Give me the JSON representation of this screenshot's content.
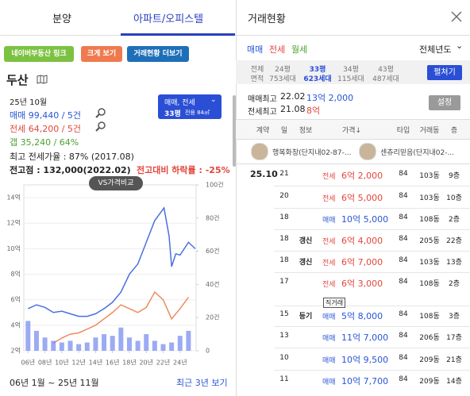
{
  "tabs": [
    "분양",
    "아파트/오피스텔"
  ],
  "buttons": [
    "네이버부동산 링크",
    "크게 보기",
    "거래현황 더보기"
  ],
  "complex": {
    "name": "두산",
    "month": "25년 10월",
    "sale": "매매 99,440 / 5건",
    "jeonse": "전세 64,200 / 5건",
    "gap": "갭 35,240 / 64%",
    "max_ratio": "최고 전세가율 : 87% (2017.08)",
    "peak": "전고점 : 132,000(2022.02)",
    "drop": "전고대비 하락률 : -25%"
  },
  "selector": {
    "type": "매매, 전세",
    "size": "33평",
    "area": "전용 84㎡"
  },
  "tooltip": "VS가격비교",
  "chart_data": {
    "type": "line",
    "xlim": [
      2005.5,
      2025.9
    ],
    "xticks": [
      {
        "value": 2006,
        "label": "06년"
      },
      {
        "value": 2008,
        "label": "08년"
      },
      {
        "value": 2010,
        "label": "10년"
      },
      {
        "value": 2012,
        "label": "12년"
      },
      {
        "value": 2014,
        "label": "14년"
      },
      {
        "value": 2016,
        "label": "16년"
      },
      {
        "value": 2018,
        "label": "18년"
      },
      {
        "value": 2020,
        "label": "20년"
      },
      {
        "value": 2022,
        "label": "22년"
      },
      {
        "value": 2024,
        "label": "24년"
      }
    ],
    "ylim": [
      2,
      15
    ],
    "yticks": [
      {
        "value": 2,
        "label": "2억"
      },
      {
        "value": 4,
        "label": "4억"
      },
      {
        "value": 6,
        "label": "6억"
      },
      {
        "value": 8,
        "label": "8억"
      },
      {
        "value": 10,
        "label": "10억"
      },
      {
        "value": 12,
        "label": "12억"
      },
      {
        "value": 14,
        "label": "14억"
      }
    ],
    "y2lim": [
      0,
      100
    ],
    "y2ticks": [
      0,
      {
        "value": 20,
        "label": "20건"
      },
      {
        "value": 40,
        "label": "40건"
      },
      {
        "value": 60,
        "label": "60건"
      },
      {
        "value": 80,
        "label": "80건"
      },
      {
        "value": 100,
        "label": "100건"
      }
    ],
    "series": [
      {
        "color": "#4a6fe0",
        "x": [
          2006,
          2007,
          2008,
          2009,
          2010,
          2011,
          2012,
          2013,
          2014,
          2015,
          2016,
          2017,
          2018,
          2019,
          2020,
          2021,
          2022.1,
          2022.7,
          2023,
          2023.5,
          2024,
          2025,
          2025.8
        ],
        "values": [
          5.3,
          5.6,
          5.4,
          5.0,
          5.1,
          4.9,
          4.7,
          4.7,
          4.9,
          5.3,
          5.8,
          6.6,
          8.0,
          8.8,
          10.5,
          12.2,
          13.2,
          11.0,
          8.6,
          9.6,
          9.5,
          10.5,
          10.0
        ]
      },
      {
        "color": "#f08a5d",
        "x": [
          2009,
          2010,
          2011,
          2012,
          2013,
          2014,
          2015,
          2016,
          2017,
          2018,
          2019,
          2020,
          2021,
          2022,
          2023,
          2024,
          2025
        ],
        "values": [
          2.6,
          3.0,
          3.3,
          3.4,
          3.7,
          4.0,
          4.5,
          5.0,
          5.6,
          5.3,
          5.0,
          5.4,
          6.6,
          6.0,
          4.5,
          5.3,
          6.2
        ]
      },
      {
        "color": "#7088ee",
        "axis": "y2",
        "x": [
          2006,
          2007,
          2008,
          2009,
          2010,
          2011,
          2012,
          2013,
          2014,
          2015,
          2016,
          2017,
          2018,
          2019,
          2020,
          2021,
          2022,
          2023,
          2024,
          2025
        ],
        "values": [
          18,
          12,
          8,
          6,
          5,
          6,
          4,
          5,
          8,
          10,
          9,
          14,
          8,
          6,
          10,
          6,
          4,
          5,
          9,
          12
        ]
      }
    ]
  },
  "period": "06년 1월 ~ 25년 11월",
  "recent": "최근 3년 보기",
  "panel": {
    "title": "거래현황",
    "deal_types": [
      "매매",
      "전세",
      "월세"
    ],
    "year_filter": "전체년도",
    "sizes": [
      {
        "size": "전체",
        "area": "면적"
      },
      {
        "size": "24평",
        "area": "753세대"
      },
      {
        "size": "33평",
        "area": "623세대"
      },
      {
        "size": "34평",
        "area": "115세대"
      },
      {
        "size": "43평",
        "area": "487세대"
      }
    ],
    "expand": "펼쳐기",
    "max_sale": {
      "label": "매매최고",
      "date": "22.02",
      "price": "13억 2,000"
    },
    "max_jeonse": {
      "label": "전세최고",
      "date": "21.08",
      "price": "8억"
    },
    "settings": "설정",
    "columns": [
      "계약",
      "일",
      "정보",
      "가격↓",
      "타입",
      "거래동",
      "층"
    ],
    "agents": [
      "행복화창(단지내02-87-...",
      "센츄리믿음(단지내02-..."
    ],
    "rows": [
      {
        "month": "25.10",
        "day": "21",
        "type": "전세",
        "price": "6억 2,000",
        "unit": "84",
        "dong": "103동",
        "floor": "9층"
      },
      {
        "day": "20",
        "type": "전세",
        "price": "6억 5,000",
        "unit": "84",
        "dong": "103동",
        "floor": "10층"
      },
      {
        "day": "18",
        "type": "매매",
        "price": "10억 5,000",
        "unit": "84",
        "dong": "108동",
        "floor": "2층"
      },
      {
        "day": "18",
        "info": "갱신",
        "type": "전세",
        "price": "6억 4,000",
        "unit": "84",
        "dong": "205동",
        "floor": "22층"
      },
      {
        "day": "18",
        "info": "갱신",
        "type": "전세",
        "price": "6억 7,000",
        "unit": "84",
        "dong": "103동",
        "floor": "13층"
      },
      {
        "day": "17",
        "type": "전세",
        "price": "6억 3,000",
        "unit": "84",
        "dong": "108동",
        "floor": "2층"
      },
      {
        "day": "15",
        "info": "등기",
        "tag": "직거래",
        "type": "매매",
        "price": "5억 8,000",
        "unit": "84",
        "dong": "108동",
        "floor": "3층"
      },
      {
        "day": "13",
        "type": "매매",
        "price": "11억 7,000",
        "unit": "84",
        "dong": "206동",
        "floor": "17층"
      },
      {
        "day": "10",
        "type": "매매",
        "price": "10억 9,500",
        "unit": "84",
        "dong": "209동",
        "floor": "21층"
      },
      {
        "day": "11",
        "type": "매매",
        "price": "10억 7,700",
        "unit": "84",
        "dong": "209동",
        "floor": "14층"
      }
    ]
  }
}
